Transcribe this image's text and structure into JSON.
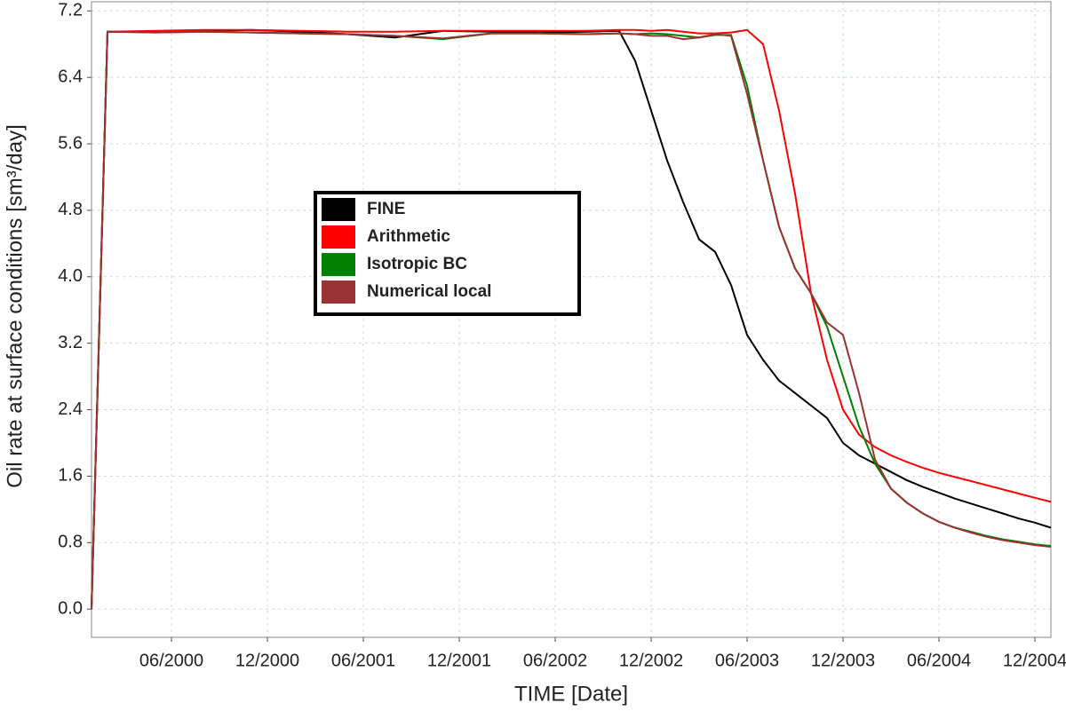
{
  "chart_data": {
    "type": "line",
    "x_label": "TIME [Date]",
    "y_label": "Oil rate at surface conditions [sm³/day]",
    "x": [
      "2000-01",
      "2000-02",
      "2000-05",
      "2000-08",
      "2000-11",
      "2001-02",
      "2001-05",
      "2001-08",
      "2001-11",
      "2002-02",
      "2002-05",
      "2002-08",
      "2002-10",
      "2002-11",
      "2002-12",
      "2003-01",
      "2003-02",
      "2003-03",
      "2003-04",
      "2003-05",
      "2003-06",
      "2003-07",
      "2003-08",
      "2003-09",
      "2003-10",
      "2003-11",
      "2003-12",
      "2004-01",
      "2004-02",
      "2004-03",
      "2004-04",
      "2004-05",
      "2004-06",
      "2004-07",
      "2004-08",
      "2004-09",
      "2004-10",
      "2004-11",
      "2004-12",
      "2005-01"
    ],
    "series": [
      {
        "name": "FINE",
        "color": "#000000",
        "values": [
          0,
          6.95,
          6.95,
          6.96,
          6.97,
          6.95,
          6.92,
          6.88,
          6.96,
          6.95,
          6.94,
          6.95,
          6.96,
          6.6,
          6.0,
          5.4,
          4.9,
          4.45,
          4.3,
          3.9,
          3.3,
          3.0,
          2.75,
          2.6,
          2.45,
          2.3,
          2.0,
          1.85,
          1.75,
          1.65,
          1.55,
          1.47,
          1.4,
          1.33,
          1.27,
          1.21,
          1.15,
          1.09,
          1.04,
          0.98
        ]
      },
      {
        "name": "Arithmetic",
        "color": "#ff0000",
        "values": [
          0,
          6.95,
          6.96,
          6.97,
          6.97,
          6.96,
          6.95,
          6.95,
          6.96,
          6.96,
          6.96,
          6.96,
          6.97,
          6.97,
          6.96,
          6.97,
          6.95,
          6.93,
          6.93,
          6.94,
          6.97,
          6.8,
          6.0,
          5.0,
          3.8,
          3.0,
          2.4,
          2.1,
          1.95,
          1.85,
          1.77,
          1.7,
          1.64,
          1.59,
          1.54,
          1.49,
          1.44,
          1.39,
          1.34,
          1.29
        ]
      },
      {
        "name": "Isotropic BC",
        "color": "#008000",
        "values": [
          0,
          6.95,
          6.94,
          6.95,
          6.94,
          6.93,
          6.92,
          6.9,
          6.86,
          6.93,
          6.93,
          6.92,
          6.93,
          6.92,
          6.93,
          6.92,
          6.9,
          6.88,
          6.91,
          6.91,
          6.3,
          5.4,
          4.6,
          4.1,
          3.8,
          3.4,
          2.8,
          2.2,
          1.75,
          1.45,
          1.28,
          1.15,
          1.05,
          0.98,
          0.93,
          0.88,
          0.84,
          0.81,
          0.78,
          0.76
        ]
      },
      {
        "name": "Numerical local",
        "color": "#993333",
        "values": [
          0,
          6.95,
          6.94,
          6.95,
          6.94,
          6.93,
          6.92,
          6.9,
          6.87,
          6.93,
          6.93,
          6.92,
          6.93,
          6.92,
          6.9,
          6.9,
          6.86,
          6.88,
          6.92,
          6.9,
          6.2,
          5.4,
          4.6,
          4.1,
          3.8,
          3.45,
          3.3,
          2.6,
          1.8,
          1.45,
          1.28,
          1.15,
          1.05,
          0.98,
          0.92,
          0.87,
          0.83,
          0.8,
          0.77,
          0.75
        ]
      }
    ],
    "xlim": [
      "2000-01",
      "2005-01"
    ],
    "xticks": [
      {
        "value": "2000-06",
        "label": "06/2000"
      },
      {
        "value": "2000-12",
        "label": "12/2000"
      },
      {
        "value": "2001-06",
        "label": "06/2001"
      },
      {
        "value": "2001-12",
        "label": "12/2001"
      },
      {
        "value": "2002-06",
        "label": "06/2002"
      },
      {
        "value": "2002-12",
        "label": "12/2002"
      },
      {
        "value": "2003-06",
        "label": "06/2003"
      },
      {
        "value": "2003-12",
        "label": "12/2003"
      },
      {
        "value": "2004-06",
        "label": "06/2004"
      },
      {
        "value": "2004-12",
        "label": "12/2004"
      }
    ],
    "ylim": [
      -0.34,
      7.31
    ],
    "yticks": [
      {
        "value": 0,
        "label": "0.0"
      },
      0.8,
      1.6,
      2.4,
      3.2,
      {
        "value": 4,
        "label": "4.0"
      },
      4.8,
      5.6,
      6.4,
      7.2
    ],
    "grid": true
  }
}
